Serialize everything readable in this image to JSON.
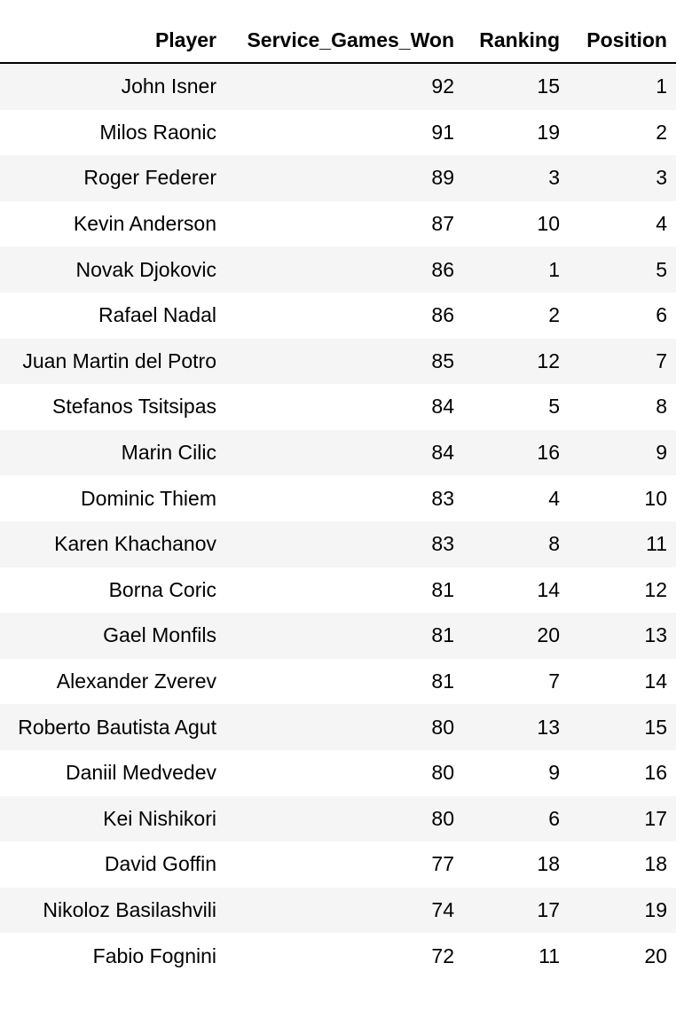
{
  "table": {
    "columns": [
      "Player",
      "Service_Games_Won",
      "Ranking",
      "Position"
    ],
    "rows": [
      [
        "John Isner",
        "92",
        "15",
        "1"
      ],
      [
        "Milos Raonic",
        "91",
        "19",
        "2"
      ],
      [
        "Roger Federer",
        "89",
        "3",
        "3"
      ],
      [
        "Kevin Anderson",
        "87",
        "10",
        "4"
      ],
      [
        "Novak Djokovic",
        "86",
        "1",
        "5"
      ],
      [
        "Rafael Nadal",
        "86",
        "2",
        "6"
      ],
      [
        "Juan Martin del Potro",
        "85",
        "12",
        "7"
      ],
      [
        "Stefanos Tsitsipas",
        "84",
        "5",
        "8"
      ],
      [
        "Marin Cilic",
        "84",
        "16",
        "9"
      ],
      [
        "Dominic Thiem",
        "83",
        "4",
        "10"
      ],
      [
        "Karen Khachanov",
        "83",
        "8",
        "11"
      ],
      [
        "Borna Coric",
        "81",
        "14",
        "12"
      ],
      [
        "Gael Monfils",
        "81",
        "20",
        "13"
      ],
      [
        "Alexander Zverev",
        "81",
        "7",
        "14"
      ],
      [
        "Roberto Bautista Agut",
        "80",
        "13",
        "15"
      ],
      [
        "Daniil Medvedev",
        "80",
        "9",
        "16"
      ],
      [
        "Kei Nishikori",
        "80",
        "6",
        "17"
      ],
      [
        "David Goffin",
        "77",
        "18",
        "18"
      ],
      [
        "Nikoloz Basilashvili",
        "74",
        "17",
        "19"
      ],
      [
        "Fabio Fognini",
        "72",
        "11",
        "20"
      ]
    ]
  }
}
